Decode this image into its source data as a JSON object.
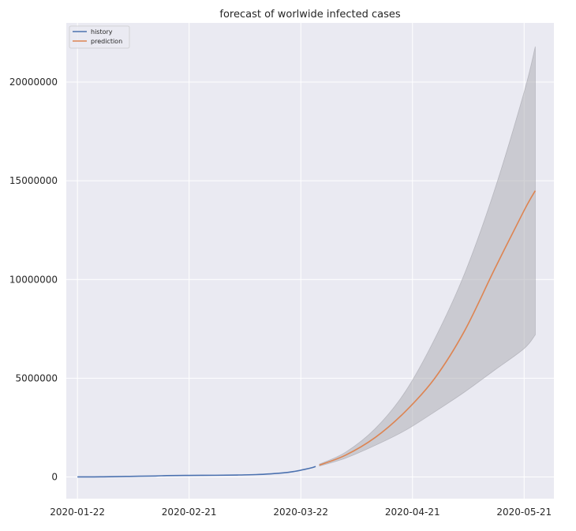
{
  "chart_data": {
    "type": "line",
    "title": "forecast of worlwide infected cases",
    "xlabel": "",
    "ylabel": "",
    "x_type": "date",
    "xlim": [
      "2020-01-19",
      "2020-05-29"
    ],
    "ylim": [
      -1100000,
      23000000
    ],
    "x_ticks": [
      "2020-01-22",
      "2020-02-21",
      "2020-03-22",
      "2020-04-21",
      "2020-05-21"
    ],
    "y_ticks": [
      0,
      5000000,
      10000000,
      15000000,
      20000000
    ],
    "y_tick_labels": [
      "0",
      "5000000",
      "10000000",
      "15000000",
      "20000000"
    ],
    "grid": true,
    "legend": {
      "placement": "top-left",
      "entries": [
        "history",
        "prediction"
      ]
    },
    "colors": {
      "background": "#eaeaf2",
      "grid": "#ffffff",
      "history": "#4c72b0",
      "prediction": "#dd8452",
      "interval": "#a9a9b0"
    },
    "series": [
      {
        "name": "history",
        "color": "#4c72b0",
        "points": [
          [
            "2020-01-22",
            555
          ],
          [
            "2020-01-29",
            6166
          ],
          [
            "2020-02-05",
            28276
          ],
          [
            "2020-02-12",
            48000
          ],
          [
            "2020-02-15",
            68000
          ],
          [
            "2020-02-21",
            78000
          ],
          [
            "2020-02-28",
            84000
          ],
          [
            "2020-03-05",
            98000
          ],
          [
            "2020-03-10",
            119000
          ],
          [
            "2020-03-14",
            157000
          ],
          [
            "2020-03-17",
            200000
          ],
          [
            "2020-03-20",
            272000
          ],
          [
            "2020-03-23",
            380000
          ],
          [
            "2020-03-25",
            468000
          ],
          [
            "2020-03-26",
            530000
          ]
        ]
      },
      {
        "name": "prediction",
        "color": "#dd8452",
        "points": [
          [
            "2020-03-27",
            600000
          ],
          [
            "2020-04-03",
            1100000
          ],
          [
            "2020-04-11",
            2000000
          ],
          [
            "2020-04-19",
            3300000
          ],
          [
            "2020-04-27",
            5000000
          ],
          [
            "2020-05-05",
            7400000
          ],
          [
            "2020-05-13",
            10500000
          ],
          [
            "2020-05-21",
            13500000
          ],
          [
            "2020-05-24",
            14500000
          ]
        ]
      }
    ],
    "interval": {
      "points": [
        [
          "2020-03-27",
          550000,
          650000
        ],
        [
          "2020-04-03",
          950000,
          1250000
        ],
        [
          "2020-04-11",
          1600000,
          2450000
        ],
        [
          "2020-04-19",
          2350000,
          4300000
        ],
        [
          "2020-04-27",
          3300000,
          7000000
        ],
        [
          "2020-05-05",
          4300000,
          10300000
        ],
        [
          "2020-05-13",
          5400000,
          14500000
        ],
        [
          "2020-05-21",
          6500000,
          19500000
        ],
        [
          "2020-05-24",
          7200000,
          21800000
        ]
      ]
    }
  }
}
